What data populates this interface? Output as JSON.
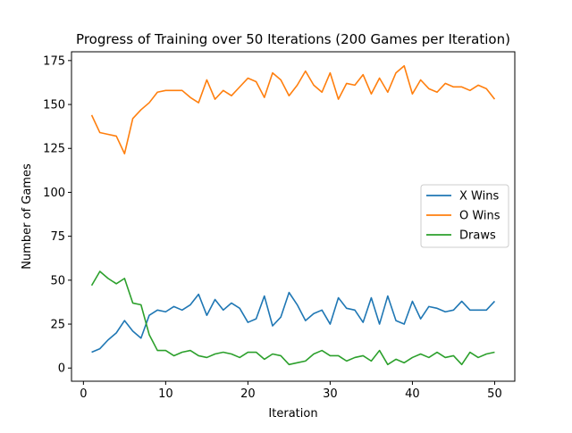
{
  "chart_data": {
    "type": "line",
    "title": "Progress of Training over 50 Iterations (200 Games per Iteration)",
    "xlabel": "Iteration",
    "ylabel": "Number of Games",
    "xlim": [
      -1.45,
      52.45
    ],
    "ylim": [
      -7.5,
      180
    ],
    "xticks": [
      0,
      10,
      20,
      30,
      40,
      50
    ],
    "yticks": [
      0,
      25,
      50,
      75,
      100,
      125,
      150,
      175
    ],
    "grid": false,
    "legend_position": "center-right",
    "x": [
      1,
      2,
      3,
      4,
      5,
      6,
      7,
      8,
      9,
      10,
      11,
      12,
      13,
      14,
      15,
      16,
      17,
      18,
      19,
      20,
      21,
      22,
      23,
      24,
      25,
      26,
      27,
      28,
      29,
      30,
      31,
      32,
      33,
      34,
      35,
      36,
      37,
      38,
      39,
      40,
      41,
      42,
      43,
      44,
      45,
      46,
      47,
      48,
      49,
      50
    ],
    "series": [
      {
        "name": "X Wins",
        "color": "#1f77b4",
        "values": [
          9,
          11,
          16,
          20,
          27,
          21,
          17,
          30,
          33,
          32,
          35,
          33,
          36,
          42,
          30,
          39,
          33,
          37,
          34,
          26,
          28,
          41,
          24,
          29,
          43,
          36,
          27,
          31,
          33,
          25,
          40,
          34,
          33,
          26,
          40,
          25,
          41,
          27,
          25,
          38,
          28,
          35,
          34,
          32,
          33,
          38,
          33,
          33,
          33,
          38
        ]
      },
      {
        "name": "O Wins",
        "color": "#ff7f0e",
        "values": [
          144,
          134,
          133,
          132,
          122,
          142,
          147,
          151,
          157,
          158,
          158,
          158,
          154,
          151,
          164,
          153,
          158,
          155,
          160,
          165,
          163,
          154,
          168,
          164,
          155,
          161,
          169,
          161,
          157,
          168,
          153,
          162,
          161,
          167,
          156,
          165,
          157,
          168,
          172,
          156,
          164,
          159,
          157,
          162,
          160,
          160,
          158,
          161,
          159,
          153
        ]
      },
      {
        "name": "Draws",
        "color": "#2ca02c",
        "values": [
          47,
          55,
          51,
          48,
          51,
          37,
          36,
          19,
          10,
          10,
          7,
          9,
          10,
          7,
          6,
          8,
          9,
          8,
          6,
          9,
          9,
          5,
          8,
          7,
          2,
          3,
          4,
          8,
          10,
          7,
          7,
          4,
          6,
          7,
          4,
          10,
          2,
          5,
          3,
          6,
          8,
          6,
          9,
          6,
          7,
          2,
          9,
          6,
          8,
          9
        ]
      }
    ]
  }
}
